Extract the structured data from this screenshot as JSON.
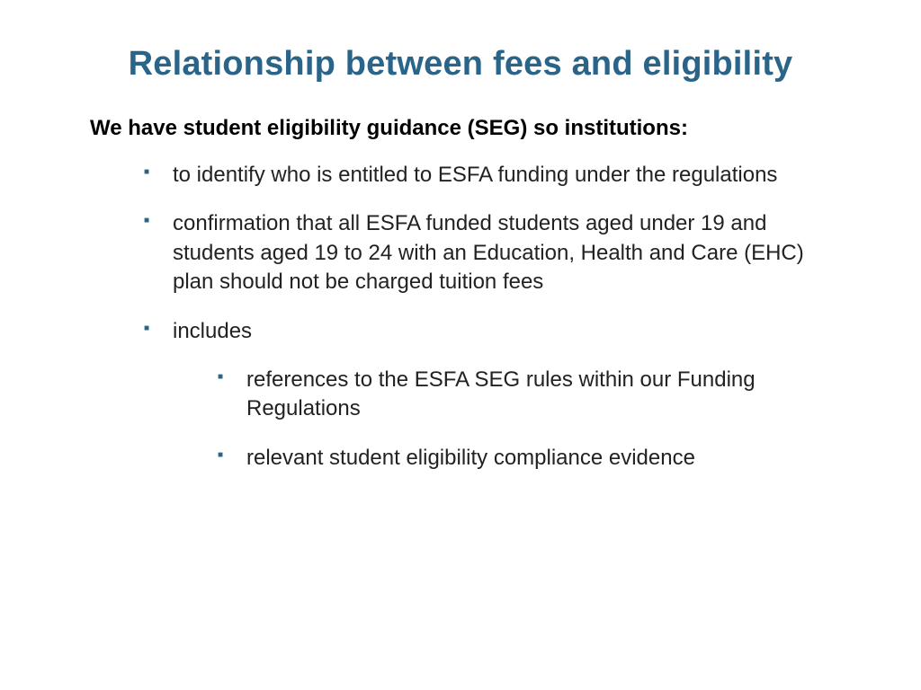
{
  "slide": {
    "title": "Relationship between fees and eligibility",
    "intro": "We have student eligibility guidance (SEG) so institutions:",
    "bullets": [
      {
        "text": "to identify who is entitled to ESFA funding under the regulations"
      },
      {
        "text": "confirmation that all ESFA funded students aged under 19 and students aged 19 to 24 with an Education, Health and Care (EHC) plan should not be charged tuition fees"
      },
      {
        "text": "includes",
        "children": [
          {
            "text": "references to the ESFA SEG rules within our Funding Regulations"
          },
          {
            "text": "relevant student eligibility compliance evidence"
          }
        ]
      }
    ],
    "styling": {
      "background_color": "#ffffff",
      "title_color": "#2a6488",
      "title_fontsize": 38,
      "title_fontweight": "bold",
      "intro_color": "#000000",
      "intro_fontsize": 24,
      "intro_fontweight": "bold",
      "body_color": "#222222",
      "body_fontsize": 24,
      "bullet_marker_color": "#2a6488",
      "bullet_marker_shape": "square",
      "font_family": "Arial",
      "slide_width": 1024,
      "slide_height": 768
    }
  }
}
